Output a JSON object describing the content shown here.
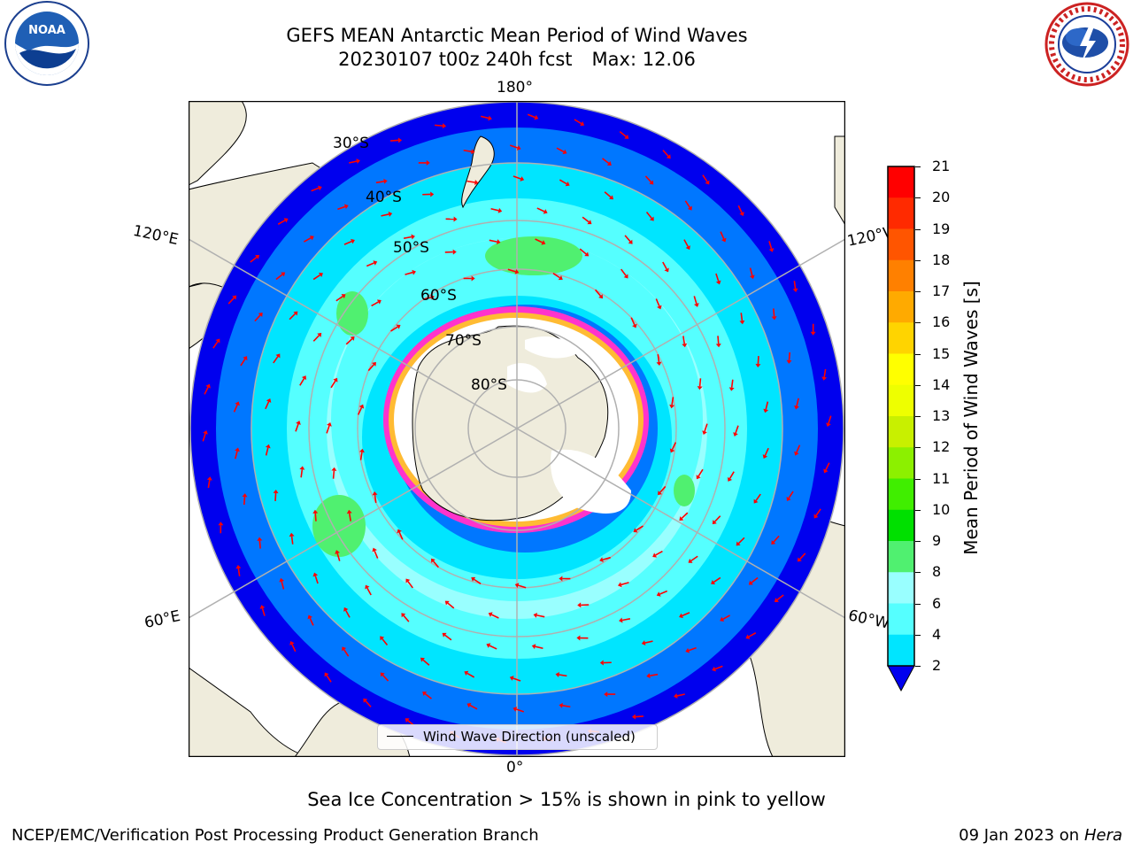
{
  "header": {
    "title_line1": "GEFS MEAN Antarctic Mean Period of Wind Waves",
    "title_date": "20230107 t00z 240h fcst",
    "title_max": "Max: 12.06"
  },
  "logos": {
    "left": {
      "name": "noaa-logo",
      "text": "NOAA"
    },
    "right": {
      "name": "nws-logo",
      "text": "NATIONAL WEATHER SERVICE"
    }
  },
  "map": {
    "projection": "south-polar-stereographic",
    "longitude_labels": {
      "top": "180°",
      "bottom": "0°",
      "left_upper": "120°E",
      "left_lower": "60°E",
      "right_upper": "120°W",
      "right_lower": "60°W"
    },
    "latitude_labels": [
      "30°S",
      "40°S",
      "50°S",
      "60°S",
      "70°S",
      "80°S"
    ],
    "land_color": "#efecdc",
    "ice_colors": [
      "#ff33cc",
      "#ffbb33",
      "#ffff66"
    ],
    "legend": {
      "line_label": "Wind Wave Direction (unscaled)"
    },
    "arrow_color": "#ff0000"
  },
  "colorbar": {
    "label": "Mean Period of Wind Waves [s]",
    "ticks": [
      "21",
      "20",
      "19",
      "18",
      "17",
      "16",
      "15",
      "14",
      "13",
      "12",
      "11",
      "10",
      "9",
      "8",
      "6",
      "4",
      "2"
    ],
    "colors": [
      "#ff0000",
      "#ff2a00",
      "#ff5500",
      "#ff8000",
      "#ffaa00",
      "#ffd400",
      "#ffff00",
      "#eeff00",
      "#c8f000",
      "#8cf000",
      "#40ee00",
      "#00e000",
      "#50f070",
      "#99ffff",
      "#55ffff",
      "#00e5ff",
      "#0077ff",
      "#0000ee"
    ]
  },
  "caption": "Sea Ice Concentration > 15% is shown in pink to yellow",
  "footer": {
    "left": "NCEP/EMC/Verification Post Processing Product Generation Branch",
    "right_date": "09 Jan 2023 on",
    "right_host": "Hera"
  }
}
